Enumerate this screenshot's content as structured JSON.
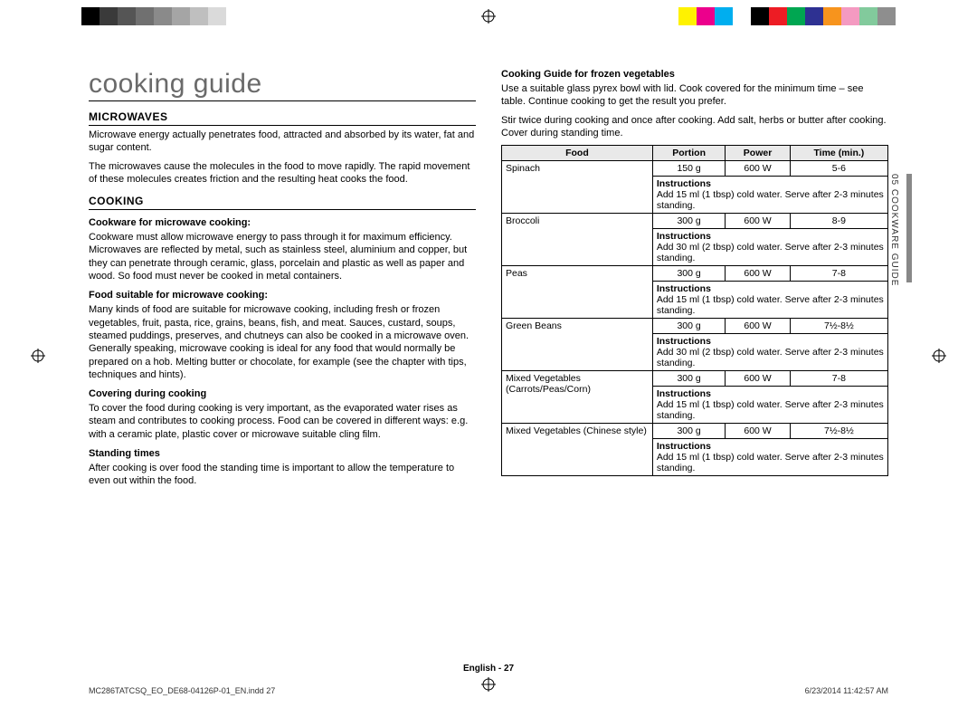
{
  "colorbars": {
    "left": [
      "#000000",
      "#3a3a3a",
      "#555555",
      "#707070",
      "#8a8a8a",
      "#a5a5a5",
      "#bfbfbf",
      "#dadada",
      "#ffffff"
    ],
    "right": [
      "#fff200",
      "#ec008c",
      "#00aeef",
      "#ffffff",
      "#000000",
      "#ed1c24",
      "#00a651",
      "#2e3192",
      "#f7941d",
      "#f49ac1",
      "#82ca9c",
      "#8e8e8e"
    ]
  },
  "title": "cooking guide",
  "left": {
    "h_micro": "MICROWAVES",
    "micro_p1": "Microwave energy actually penetrates food, attracted and absorbed by its water, fat and sugar content.",
    "micro_p2": "The microwaves cause the molecules in the food to move rapidly. The rapid movement of these molecules creates friction and the resulting heat cooks the food.",
    "h_cook": "COOKING",
    "sub1": "Cookware for microwave cooking:",
    "p1": "Cookware must allow microwave energy to pass through it for maximum efficiency. Microwaves are reflected by metal, such as stainless steel, aluminium and copper, but they can penetrate through ceramic, glass, porcelain and plastic as well as paper and wood. So food must never be cooked in metal containers.",
    "sub2": "Food suitable for microwave cooking:",
    "p2": "Many kinds of food are suitable for microwave cooking, including fresh or frozen vegetables, fruit, pasta, rice, grains, beans, fish, and meat. Sauces, custard, soups, steamed puddings, preserves, and chutneys can also be cooked in a microwave oven. Generally speaking, microwave cooking is ideal for any food that would normally be prepared on a hob. Melting butter or chocolate, for example (see the chapter with tips, techniques and hints).",
    "sub3": "Covering during cooking",
    "p3": "To cover the food during cooking is very important, as the evaporated water rises as steam and contributes to cooking process. Food can be covered in different ways: e.g. with a ceramic plate, plastic cover or microwave suitable cling film.",
    "sub4": "Standing times",
    "p4": "After cooking is over food the standing time is important to allow the temperature to even out within the food."
  },
  "right": {
    "h_frozen": "Cooking Guide for frozen vegetables",
    "intro1": "Use a suitable glass pyrex bowl with lid. Cook covered for the minimum time – see table. Continue cooking to get the result you prefer.",
    "intro2": "Stir twice during cooking and once after cooking. Add salt, herbs or butter after cooking. Cover during standing time.",
    "table": {
      "headers": [
        "Food",
        "Portion",
        "Power",
        "Time (min.)"
      ],
      "rows": [
        {
          "food": "Spinach",
          "portion": "150 g",
          "power": "600 W",
          "time": "5-6",
          "instr": "Add 15 ml (1 tbsp) cold water. Serve after 2-3 minutes standing."
        },
        {
          "food": "Broccoli",
          "portion": "300 g",
          "power": "600 W",
          "time": "8-9",
          "instr": "Add 30 ml (2 tbsp) cold water. Serve after 2-3 minutes standing."
        },
        {
          "food": "Peas",
          "portion": "300 g",
          "power": "600 W",
          "time": "7-8",
          "instr": "Add 15 ml (1 tbsp) cold water. Serve after 2-3 minutes standing."
        },
        {
          "food": "Green Beans",
          "portion": "300 g",
          "power": "600 W",
          "time": "7½-8½",
          "instr": "Add 30 ml (2 tbsp) cold water. Serve after 2-3 minutes standing."
        },
        {
          "food": "Mixed Vegetables (Carrots/Peas/Corn)",
          "portion": "300 g",
          "power": "600 W",
          "time": "7-8",
          "instr": "Add 15 ml (1 tbsp) cold water. Serve after 2-3 minutes standing."
        },
        {
          "food": "Mixed Vegetables (Chinese style)",
          "portion": "300 g",
          "power": "600 W",
          "time": "7½-8½",
          "instr": "Add 15 ml (1 tbsp) cold water. Serve after 2-3 minutes standing."
        }
      ],
      "instr_label": "Instructions"
    }
  },
  "side_tab": "05  COOKWARE GUIDE",
  "footer_center": "English - 27",
  "footer_left": "MC286TATCSQ_EO_DE68-04126P-01_EN.indd   27",
  "footer_right": "6/23/2014   11:42:57 AM"
}
